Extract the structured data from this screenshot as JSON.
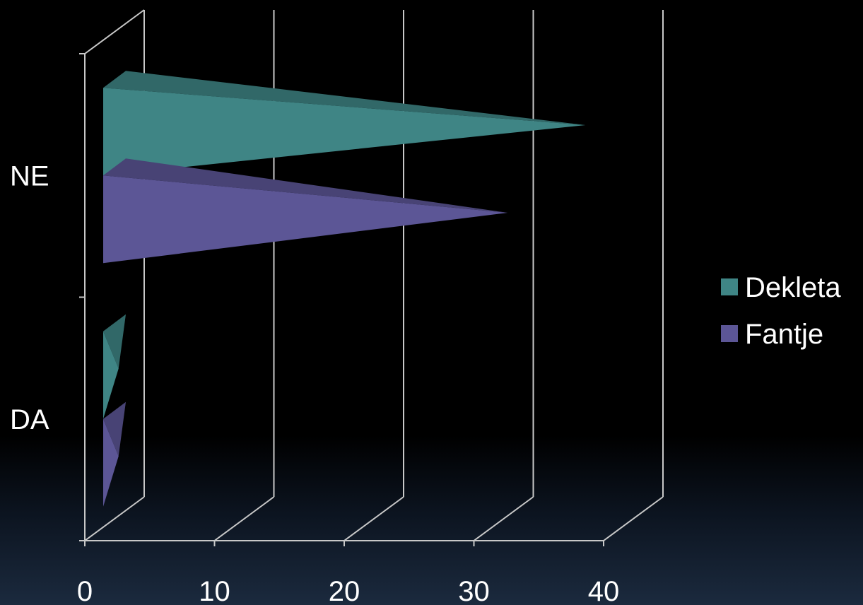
{
  "chart_data": {
    "type": "bar",
    "orientation": "horizontal",
    "style": "3d-cone",
    "categories": [
      "NE",
      "DA"
    ],
    "series": [
      {
        "name": "Dekleta",
        "values": [
          37,
          1
        ],
        "color": "#3f8585"
      },
      {
        "name": "Fantje",
        "values": [
          31,
          1
        ],
        "color": "#5c5696"
      }
    ],
    "x_ticks": [
      "0",
      "10",
      "20",
      "30",
      "40"
    ],
    "xlim": [
      0,
      40
    ],
    "grid": true,
    "legend_position": "right",
    "title": "",
    "xlabel": "",
    "ylabel": ""
  }
}
